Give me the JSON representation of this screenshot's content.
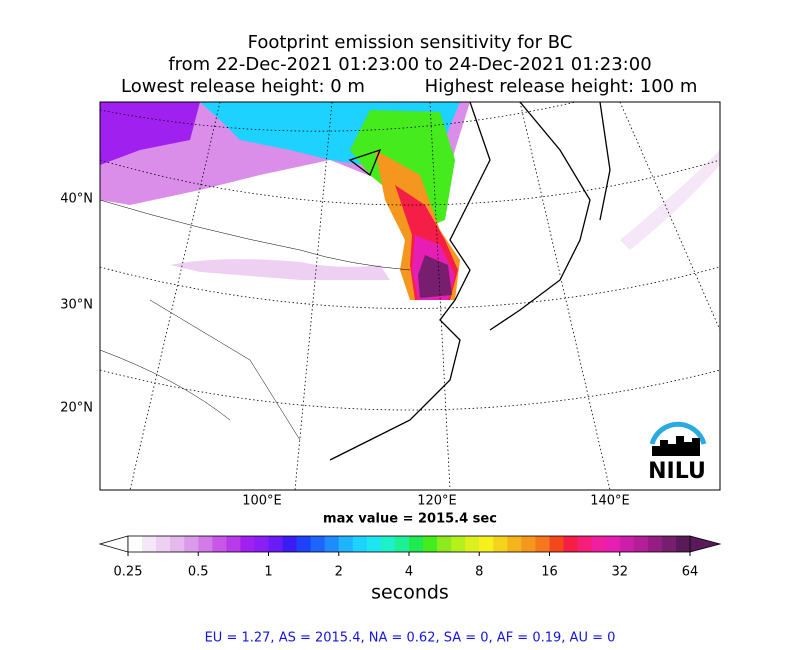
{
  "title": {
    "line1": "Footprint emission sensitivity for BC",
    "line2": "from 22-Dec-2021 01:23:00 to 24-Dec-2021 01:23:00",
    "lowest": "Lowest release height: 0 m",
    "highest": "Highest release height: 100 m"
  },
  "map": {
    "lat_labels": [
      "40°N",
      "30°N",
      "20°N"
    ],
    "lon_labels": [
      "100°E",
      "120°E",
      "140°E"
    ],
    "logo": "NILU",
    "max_value": "max value = 2015.4 sec"
  },
  "colorbar": {
    "ticks": [
      0.25,
      0.5,
      1,
      2,
      4,
      8,
      16,
      32,
      64
    ],
    "unit": "seconds",
    "colors": [
      "#ffffff",
      "#f5e6f8",
      "#eed0f3",
      "#e6b8ee",
      "#dc9be9",
      "#d47ae6",
      "#c857e6",
      "#b83ae8",
      "#a020f0",
      "#8a1ef5",
      "#6a1cf7",
      "#3c1cf5",
      "#1e40ff",
      "#1e64ff",
      "#1e8cff",
      "#1eb4ff",
      "#1ed2ff",
      "#1ee6f0",
      "#1ef0c8",
      "#1ef096",
      "#1eeb50",
      "#46eb1e",
      "#8ceb1e",
      "#b4f01e",
      "#dcf01e",
      "#f5f01e",
      "#f5d21e",
      "#f5b41e",
      "#f5961e",
      "#f5781e",
      "#f5461e",
      "#f51e46",
      "#f51e78",
      "#f01ea0",
      "#e61eb4",
      "#cd1eaa",
      "#b41e96",
      "#961e82",
      "#781e6e",
      "#5a1a5a"
    ]
  },
  "footer": "EU = 1.27,  AS = 2015.4,  NA = 0.62,  SA = 0,  AF = 0.19,  AU = 0"
}
